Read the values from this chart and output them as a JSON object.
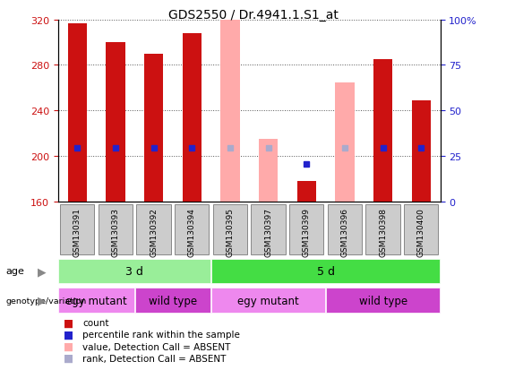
{
  "title": "GDS2550 / Dr.4941.1.S1_at",
  "samples": [
    "GSM130391",
    "GSM130393",
    "GSM130392",
    "GSM130394",
    "GSM130395",
    "GSM130397",
    "GSM130399",
    "GSM130396",
    "GSM130398",
    "GSM130400"
  ],
  "count_values": [
    317,
    300,
    290,
    308,
    null,
    null,
    178,
    null,
    285,
    249
  ],
  "count_absent": [
    null,
    null,
    null,
    null,
    320,
    215,
    null,
    265,
    null,
    null
  ],
  "rank_values": [
    207,
    207,
    207,
    207,
    null,
    null,
    193,
    null,
    207,
    207
  ],
  "rank_absent": [
    null,
    null,
    null,
    null,
    207,
    207,
    null,
    207,
    null,
    null
  ],
  "ylim_left": [
    160,
    320
  ],
  "ylim_right": [
    0,
    100
  ],
  "yticks_left": [
    160,
    200,
    240,
    280,
    320
  ],
  "yticks_right": [
    0,
    25,
    50,
    75,
    100
  ],
  "age_groups": [
    {
      "label": "3 d",
      "start": 0,
      "end": 4,
      "color": "#99ee99"
    },
    {
      "label": "5 d",
      "start": 4,
      "end": 10,
      "color": "#44dd44"
    }
  ],
  "genotype_groups": [
    {
      "label": "egy mutant",
      "start": 0,
      "end": 2,
      "color": "#ee88ee"
    },
    {
      "label": "wild type",
      "start": 2,
      "end": 4,
      "color": "#cc44cc"
    },
    {
      "label": "egy mutant",
      "start": 4,
      "end": 7,
      "color": "#ee88ee"
    },
    {
      "label": "wild type",
      "start": 7,
      "end": 10,
      "color": "#cc44cc"
    }
  ],
  "bar_width": 0.5,
  "color_count": "#cc1111",
  "color_count_absent": "#ffaaaa",
  "color_rank": "#2222cc",
  "color_rank_absent": "#aaaacc",
  "baseline": 160,
  "legend_items": [
    {
      "label": "count",
      "color": "#cc1111"
    },
    {
      "label": "percentile rank within the sample",
      "color": "#2222cc"
    },
    {
      "label": "value, Detection Call = ABSENT",
      "color": "#ffaaaa"
    },
    {
      "label": "rank, Detection Call = ABSENT",
      "color": "#aaaacc"
    }
  ],
  "sample_box_color": "#cccccc",
  "left_tick_color": "#cc1111",
  "right_tick_color": "#2222cc"
}
